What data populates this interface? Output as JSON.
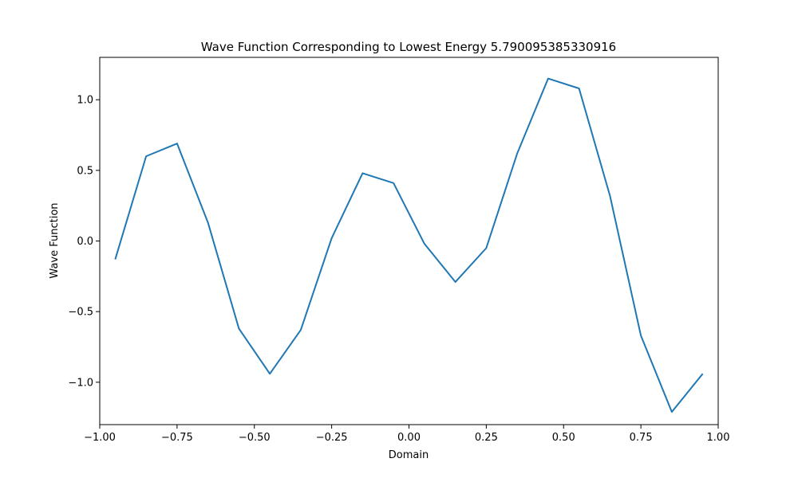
{
  "chart_data": {
    "type": "line",
    "title": "Wave Function Corresponding to Lowest Energy 5.790095385330916",
    "xlabel": "Domain",
    "ylabel": "Wave Function",
    "xlim": [
      -1.0,
      1.0
    ],
    "ylim": [
      -1.3,
      1.3
    ],
    "xticks": [
      -1.0,
      -0.75,
      -0.5,
      -0.25,
      0.0,
      0.25,
      0.5,
      0.75,
      1.0
    ],
    "xtick_labels": [
      "−1.00",
      "−0.75",
      "−0.50",
      "−0.25",
      "0.00",
      "0.25",
      "0.50",
      "0.75",
      "1.00"
    ],
    "yticks": [
      -1.0,
      -0.5,
      0.0,
      0.5,
      1.0
    ],
    "ytick_labels": [
      "−1.0",
      "−0.5",
      "0.0",
      "0.5",
      "1.0"
    ],
    "grid": false,
    "legend": "none",
    "series": [
      {
        "color": "#1f77b4",
        "x": [
          -0.95,
          -0.85,
          -0.75,
          -0.65,
          -0.55,
          -0.45,
          -0.35,
          -0.25,
          -0.15,
          -0.05,
          0.05,
          0.15,
          0.25,
          0.35,
          0.45,
          0.55,
          0.65,
          0.75,
          0.85,
          0.95
        ],
        "y": [
          -0.13,
          0.6,
          0.69,
          0.13,
          -0.62,
          -0.94,
          -0.63,
          0.02,
          0.48,
          0.41,
          -0.02,
          -0.29,
          -0.05,
          0.62,
          1.15,
          1.08,
          0.32,
          -0.67,
          -1.21,
          -0.94
        ]
      }
    ]
  }
}
